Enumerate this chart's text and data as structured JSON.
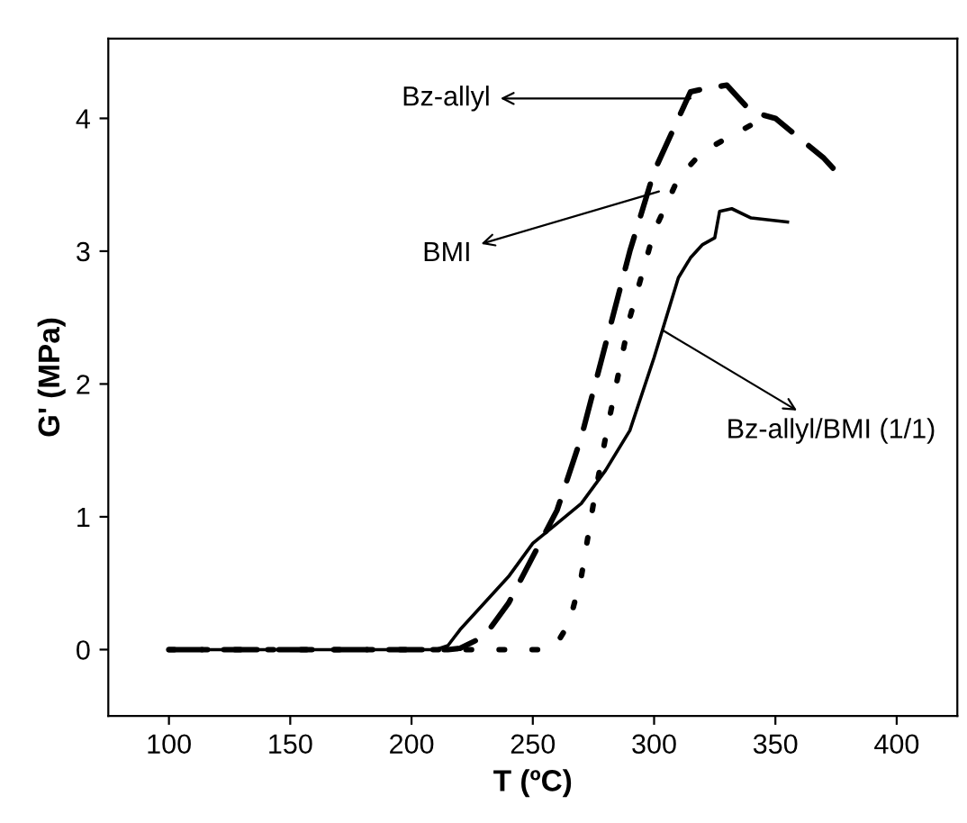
{
  "chart_data": {
    "type": "line",
    "xlabel": "T (ºC)",
    "ylabel": "G' (MPa)",
    "xlim": [
      75,
      425
    ],
    "ylim": [
      -0.5,
      4.6
    ],
    "xticks": [
      100,
      150,
      200,
      250,
      300,
      350,
      400
    ],
    "yticks": [
      0,
      1,
      2,
      3,
      4
    ],
    "grid": false,
    "marker": "none",
    "series": [
      {
        "color": "#000000",
        "line_style": "dashed",
        "x": [
          100,
          150,
          200,
          215,
          220,
          230,
          240,
          250,
          260,
          270,
          280,
          290,
          300,
          310,
          315,
          320,
          330,
          335,
          340,
          350,
          360,
          370,
          375
        ],
        "values": [
          0,
          0,
          0,
          0,
          0.01,
          0.1,
          0.35,
          0.7,
          1.05,
          1.6,
          2.3,
          3.0,
          3.6,
          4.0,
          4.2,
          4.22,
          4.25,
          4.15,
          4.05,
          4.0,
          3.85,
          3.7,
          3.6
        ]
      },
      {
        "color": "#000000",
        "line_style": "dotted",
        "x": [
          100,
          150,
          200,
          255,
          260,
          265,
          270,
          275,
          280,
          290,
          300,
          310,
          320,
          330,
          340,
          345
        ],
        "values": [
          0,
          0,
          0,
          0,
          0.05,
          0.2,
          0.55,
          1.1,
          1.6,
          2.5,
          3.15,
          3.55,
          3.75,
          3.85,
          3.95,
          4.05
        ]
      },
      {
        "color": "#000000",
        "line_style": "solid",
        "x": [
          100,
          150,
          210,
          215,
          220,
          230,
          240,
          250,
          260,
          270,
          280,
          290,
          300,
          310,
          315,
          320,
          325,
          327,
          332,
          340,
          355
        ],
        "values": [
          0,
          0,
          0,
          0.03,
          0.15,
          0.35,
          0.55,
          0.8,
          0.95,
          1.1,
          1.35,
          1.65,
          2.2,
          2.8,
          2.95,
          3.05,
          3.1,
          3.3,
          3.32,
          3.25,
          3.22
        ]
      }
    ],
    "annotations": [
      {
        "text": "Bz-allyl",
        "x": 315,
        "y": 4.15
      },
      {
        "text": "BMI",
        "x": 302,
        "y": 3.45
      },
      {
        "text": "Bz-allyl/BMI (1/1)",
        "x": 304,
        "y": 2.4
      }
    ]
  }
}
